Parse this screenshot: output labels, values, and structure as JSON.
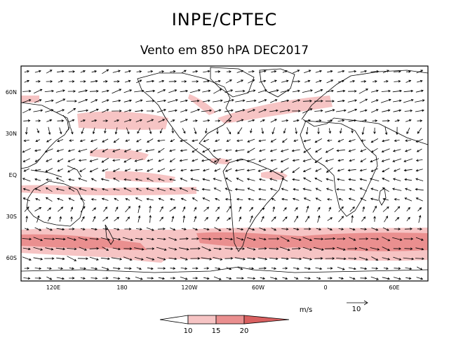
{
  "header": {
    "title": "INPE/CPTEC",
    "subtitle": "Vento em 850 hPA DEC2017"
  },
  "map": {
    "lat_labels": [
      "60N",
      "30N",
      "EQ",
      "30S",
      "60S"
    ],
    "lon_labels": [
      "120E",
      "180",
      "120W",
      "60W",
      "0",
      "60E"
    ],
    "shading_colors": [
      "#ffffff",
      "#f6c4c4",
      "#ea8f8f",
      "#d96060"
    ]
  },
  "legend": {
    "units": "m/s",
    "levels": [
      "10",
      "15",
      "20"
    ],
    "reference_vector": "10"
  }
}
